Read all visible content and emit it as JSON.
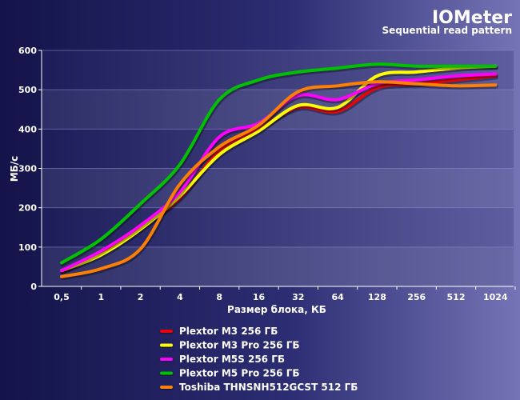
{
  "chart_data": {
    "type": "line",
    "title": "IOMeter",
    "subtitle": "Sequential read pattern",
    "xlabel": "Размер блока, КБ",
    "ylabel": "МБ/с",
    "categories": [
      "0,5",
      "1",
      "2",
      "4",
      "8",
      "16",
      "32",
      "64",
      "128",
      "256",
      "512",
      "1024"
    ],
    "ylim": [
      0,
      600
    ],
    "yticks": [
      "0",
      "100",
      "200",
      "300",
      "400",
      "500",
      "600"
    ],
    "grid": "horizontal alternating bands",
    "legend_position": "bottom",
    "series": [
      {
        "name": "Plextor M3 256 ГБ",
        "color": "#e8000b",
        "values": [
          40,
          85,
          150,
          225,
          345,
          400,
          455,
          445,
          505,
          515,
          525,
          535
        ]
      },
      {
        "name": "Plextor M3 Pro 256 ГБ",
        "color": "#ffff00",
        "values": [
          40,
          80,
          145,
          230,
          335,
          395,
          460,
          455,
          535,
          545,
          555,
          560
        ]
      },
      {
        "name": "Plextor M5S 256 ГБ",
        "color": "#ff00ff",
        "values": [
          40,
          90,
          155,
          240,
          380,
          415,
          485,
          475,
          515,
          525,
          535,
          540
        ]
      },
      {
        "name": "Plextor M5 Pro 256 ГБ",
        "color": "#00c000",
        "values": [
          60,
          120,
          210,
          310,
          475,
          525,
          545,
          555,
          565,
          560,
          560,
          560
        ]
      },
      {
        "name": "Toshiba THNSNH512GCST 512 ГБ",
        "color": "#ff7f00",
        "values": [
          25,
          45,
          95,
          260,
          355,
          410,
          495,
          510,
          520,
          515,
          510,
          512
        ]
      }
    ]
  }
}
